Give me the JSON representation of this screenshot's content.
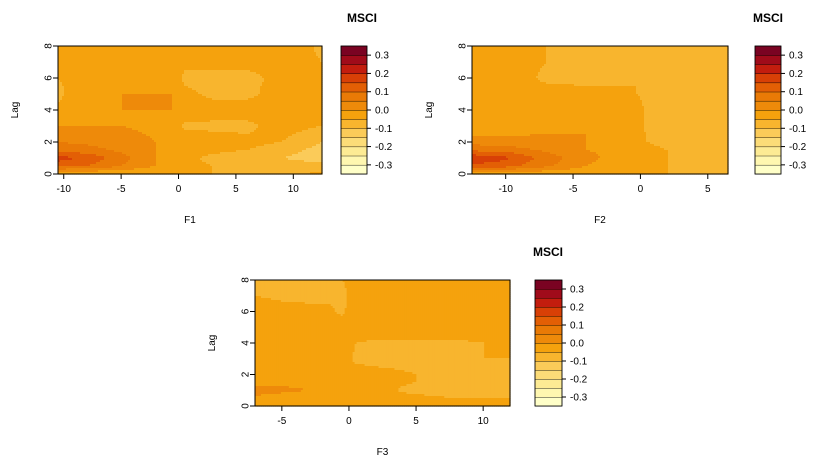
{
  "chart_data": [
    {
      "type": "heatmap",
      "subtype": "filled-contour",
      "xlabel": "F1",
      "ylabel": "Lag",
      "xlim": [
        -10.5,
        12.5
      ],
      "ylim": [
        0,
        8
      ],
      "xticks": [
        -10,
        -5,
        0,
        5,
        10
      ],
      "yticks": [
        0,
        2,
        4,
        6,
        8
      ],
      "legend": {
        "title": "MSCI",
        "labels": [
          "0.3",
          "0.2",
          "0.1",
          "0.0",
          "-0.1",
          "-0.2",
          "-0.3"
        ],
        "placement": "right"
      },
      "x": [
        -10.5,
        -8,
        -5,
        -2,
        -0.5,
        0.5,
        3,
        6,
        9,
        11,
        12.5
      ],
      "y": [
        0,
        0.5,
        1,
        1.5,
        2,
        3,
        4,
        5,
        6,
        7,
        8
      ],
      "z": [
        [
          -0.06,
          -0.05,
          -0.05,
          -0.05,
          -0.05,
          -0.05,
          -0.05,
          -0.05,
          -0.05,
          -0.05,
          -0.04
        ],
        [
          0.12,
          0.1,
          0.05,
          0.0,
          -0.03,
          -0.04,
          -0.05,
          -0.06,
          -0.06,
          -0.07,
          -0.07
        ],
        [
          0.17,
          0.14,
          0.07,
          0.0,
          -0.02,
          -0.04,
          -0.06,
          -0.08,
          -0.1,
          -0.12,
          -0.13
        ],
        [
          0.08,
          0.07,
          0.04,
          0.0,
          -0.01,
          -0.03,
          -0.04,
          -0.05,
          -0.07,
          -0.1,
          -0.12
        ],
        [
          0.05,
          0.04,
          0.02,
          0.0,
          -0.01,
          -0.02,
          -0.03,
          -0.04,
          -0.05,
          -0.08,
          -0.1
        ],
        [
          0.0,
          0.0,
          0.0,
          -0.01,
          -0.01,
          -0.06,
          -0.06,
          -0.06,
          -0.03,
          -0.04,
          -0.05
        ],
        [
          -0.04,
          -0.02,
          0.0,
          0.0,
          0.0,
          -0.01,
          -0.03,
          -0.03,
          -0.02,
          -0.02,
          -0.01
        ],
        [
          -0.06,
          -0.02,
          0.0,
          0.0,
          0.0,
          -0.04,
          -0.06,
          -0.06,
          -0.03,
          -0.02,
          -0.02
        ],
        [
          -0.05,
          -0.03,
          -0.02,
          -0.02,
          -0.02,
          -0.06,
          -0.06,
          -0.06,
          -0.04,
          -0.03,
          -0.03
        ],
        [
          -0.04,
          -0.02,
          -0.01,
          -0.01,
          -0.01,
          -0.04,
          -0.04,
          -0.04,
          -0.03,
          -0.04,
          -0.05
        ],
        [
          -0.01,
          0.0,
          0.0,
          -0.01,
          -0.01,
          -0.03,
          -0.03,
          -0.03,
          -0.02,
          -0.04,
          -0.06
        ]
      ]
    },
    {
      "type": "heatmap",
      "subtype": "filled-contour",
      "xlabel": "F2",
      "ylabel": "Lag",
      "xlim": [
        -12.5,
        6.5
      ],
      "ylim": [
        0,
        8
      ],
      "xticks": [
        -10,
        -5,
        0,
        5
      ],
      "yticks": [
        0,
        2,
        4,
        6,
        8
      ],
      "legend": {
        "title": "MSCI",
        "labels": [
          "0.3",
          "0.2",
          "0.1",
          "0.0",
          "-0.1",
          "-0.2",
          "-0.3"
        ],
        "placement": "right"
      },
      "x": [
        -12.5,
        -10,
        -7,
        -4,
        -1,
        -0.3,
        0.5,
        2,
        4,
        6.5
      ],
      "y": [
        0,
        0.5,
        1,
        1.5,
        2,
        3,
        4,
        5,
        6,
        7,
        8
      ],
      "z": [
        [
          -0.05,
          -0.04,
          -0.04,
          -0.04,
          -0.04,
          -0.04,
          -0.04,
          -0.05,
          -0.05,
          -0.05
        ],
        [
          0.14,
          0.12,
          0.06,
          0.0,
          -0.02,
          -0.03,
          -0.04,
          -0.05,
          -0.06,
          -0.07
        ],
        [
          0.19,
          0.16,
          0.08,
          0.01,
          -0.02,
          -0.03,
          -0.04,
          -0.05,
          -0.07,
          -0.1
        ],
        [
          0.09,
          0.08,
          0.04,
          0.0,
          -0.01,
          -0.02,
          -0.04,
          -0.05,
          -0.06,
          -0.08
        ],
        [
          0.03,
          0.02,
          0.01,
          0.0,
          -0.01,
          -0.02,
          -0.05,
          -0.06,
          -0.06,
          -0.06
        ],
        [
          -0.04,
          -0.03,
          -0.01,
          0.0,
          0.0,
          -0.03,
          -0.06,
          -0.06,
          -0.06,
          -0.06
        ],
        [
          -0.03,
          -0.02,
          -0.01,
          0.0,
          -0.01,
          -0.03,
          -0.06,
          -0.06,
          -0.06,
          -0.06
        ],
        [
          -0.02,
          -0.02,
          -0.03,
          -0.04,
          -0.04,
          -0.05,
          -0.06,
          -0.06,
          -0.06,
          -0.06
        ],
        [
          -0.01,
          -0.02,
          -0.06,
          -0.06,
          -0.06,
          -0.05,
          -0.09,
          -0.06,
          -0.06,
          -0.06
        ],
        [
          -0.01,
          -0.02,
          -0.05,
          -0.06,
          -0.06,
          -0.06,
          -0.1,
          -0.07,
          -0.07,
          -0.06
        ],
        [
          -0.01,
          -0.02,
          -0.05,
          -0.06,
          -0.06,
          -0.06,
          -0.07,
          -0.06,
          -0.06,
          -0.06
        ]
      ]
    },
    {
      "type": "heatmap",
      "subtype": "filled-contour",
      "xlabel": "F3",
      "ylabel": "Lag",
      "xlim": [
        -7,
        12
      ],
      "ylim": [
        0,
        8
      ],
      "xticks": [
        -5,
        0,
        5,
        10
      ],
      "yticks": [
        0,
        2,
        4,
        6,
        8
      ],
      "legend": {
        "title": "MSCI",
        "labels": [
          "0.3",
          "0.2",
          "0.1",
          "0.0",
          "-0.1",
          "-0.2",
          "-0.3"
        ],
        "placement": "right"
      },
      "x": [
        -7,
        -5,
        -3,
        -1.5,
        -0.5,
        0.5,
        2,
        5,
        8,
        10,
        12
      ],
      "y": [
        0,
        0.5,
        1,
        1.5,
        2,
        3,
        4,
        5,
        6,
        7,
        8
      ],
      "z": [
        [
          -0.04,
          -0.04,
          -0.04,
          -0.04,
          -0.04,
          -0.04,
          -0.04,
          -0.04,
          -0.04,
          -0.04,
          -0.04
        ],
        [
          -0.01,
          -0.02,
          -0.03,
          -0.03,
          -0.03,
          -0.03,
          -0.04,
          -0.04,
          -0.05,
          -0.05,
          -0.05
        ],
        [
          0.02,
          0.01,
          0.0,
          -0.01,
          -0.02,
          -0.03,
          -0.04,
          -0.06,
          -0.07,
          -0.08,
          -0.09
        ],
        [
          -0.01,
          -0.01,
          -0.01,
          -0.01,
          -0.02,
          -0.03,
          -0.04,
          -0.05,
          -0.06,
          -0.07,
          -0.08
        ],
        [
          -0.03,
          -0.02,
          -0.01,
          -0.01,
          -0.02,
          -0.03,
          -0.04,
          -0.05,
          -0.06,
          -0.06,
          -0.07
        ],
        [
          -0.05,
          -0.04,
          -0.03,
          -0.02,
          -0.02,
          -0.06,
          -0.06,
          -0.06,
          -0.06,
          -0.05,
          -0.05
        ],
        [
          -0.04,
          -0.03,
          -0.02,
          -0.02,
          -0.02,
          -0.05,
          -0.06,
          -0.06,
          -0.06,
          -0.05,
          -0.04
        ],
        [
          -0.02,
          -0.02,
          -0.02,
          -0.02,
          -0.03,
          -0.01,
          -0.01,
          -0.01,
          -0.01,
          -0.01,
          -0.01
        ],
        [
          -0.02,
          -0.03,
          -0.04,
          -0.04,
          -0.06,
          -0.01,
          -0.01,
          -0.01,
          -0.01,
          -0.01,
          -0.01
        ],
        [
          -0.05,
          -0.06,
          -0.06,
          -0.06,
          -0.07,
          -0.02,
          -0.01,
          -0.01,
          -0.01,
          -0.01,
          -0.01
        ],
        [
          -0.06,
          -0.06,
          -0.06,
          -0.06,
          -0.05,
          -0.02,
          -0.01,
          -0.01,
          -0.01,
          -0.01,
          -0.01
        ]
      ]
    }
  ],
  "palette": {
    "levels": [
      -0.35,
      -0.3,
      -0.25,
      -0.2,
      -0.15,
      -0.1,
      -0.05,
      0.0,
      0.05,
      0.1,
      0.15,
      0.2,
      0.25,
      0.3,
      0.35
    ],
    "colors": [
      "#FFFFC8",
      "#FFF7B0",
      "#FDEB94",
      "#FCDC78",
      "#FBCB59",
      "#F8B52E",
      "#F5A20D",
      "#EE8A0A",
      "#E97A06",
      "#E35F05",
      "#D84006",
      "#C31D0E",
      "#A00B1A",
      "#7A0322"
    ]
  }
}
